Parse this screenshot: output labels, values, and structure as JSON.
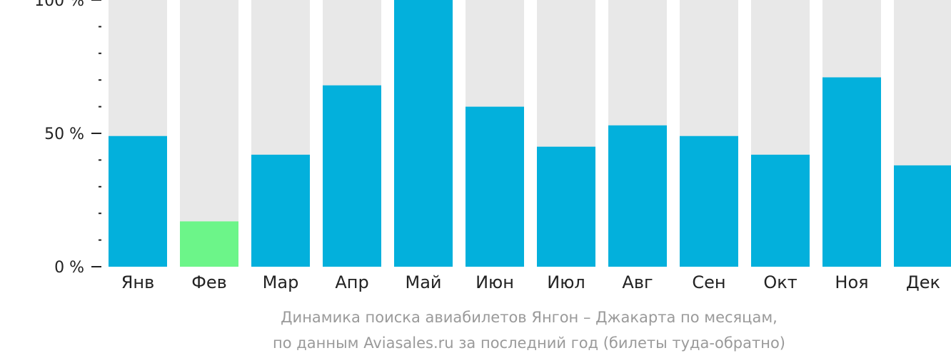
{
  "chart_data": {
    "type": "bar",
    "categories": [
      "Янв",
      "Фев",
      "Мар",
      "Апр",
      "Май",
      "Июн",
      "Июл",
      "Авг",
      "Сен",
      "Окт",
      "Ноя",
      "Дек"
    ],
    "values": [
      49,
      17,
      42,
      68,
      100,
      60,
      45,
      53,
      49,
      42,
      71,
      38
    ],
    "highlight_category": "Фев",
    "ylim": [
      0,
      100
    ],
    "yticks": [
      {
        "value": 100,
        "label": "100 %"
      },
      {
        "value": 50,
        "label": "50 %"
      },
      {
        "value": 0,
        "label": "0 %"
      }
    ],
    "minor_tick_step": 10,
    "title": "",
    "caption_line1": "Динамика поиска авиабилетов Янгон – Джакарта по месяцам,",
    "caption_line2": "по данным Aviasales.ru за последний год (билеты туда-обратно)",
    "grid": false,
    "legend": "none",
    "colors": {
      "bar": "#03b0dc",
      "highlight": "#6cf589",
      "background_bar": "#e8e8e8",
      "axis": "#222222",
      "caption": "#9a9a9a"
    }
  }
}
